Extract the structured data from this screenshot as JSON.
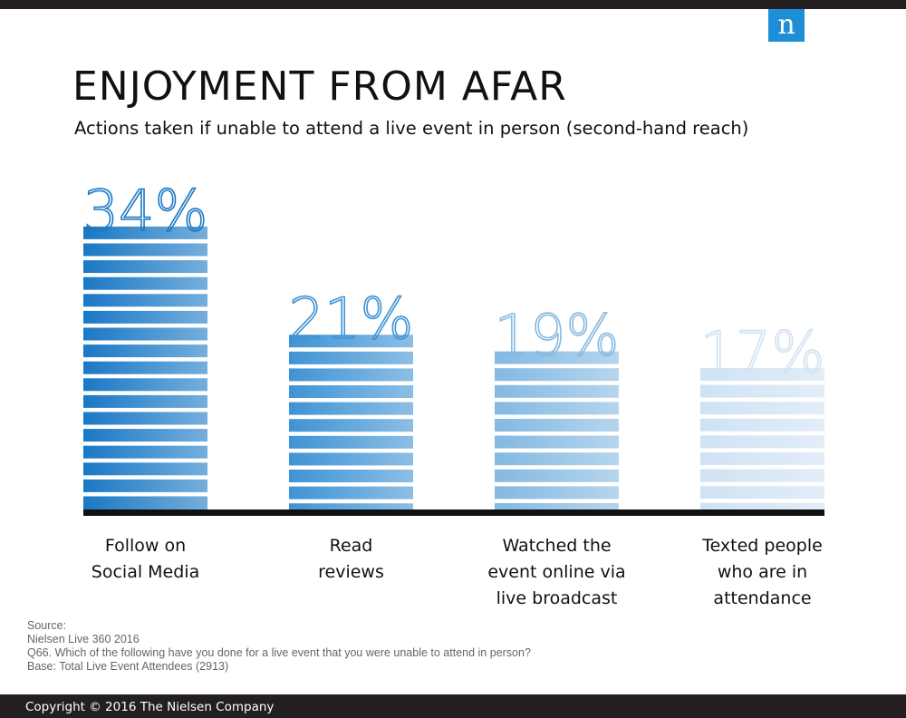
{
  "chart_data": {
    "type": "bar",
    "title": "ENJOYMENT FROM AFAR",
    "subtitle": "Actions taken if unable to attend a live event in person (second-hand reach)",
    "categories": [
      "Follow on\nSocial Media",
      "Read\nreviews",
      "Watched the\nevent online via\nlive broadcast",
      "Texted people\nwho are in\nattendance"
    ],
    "values": [
      34,
      21,
      19,
      17
    ],
    "value_labels": [
      "34%",
      "21%",
      "19%",
      "17%"
    ],
    "colors": [
      "#1a78c4",
      "#3f93d4",
      "#84b9e2",
      "#cfe2f3"
    ]
  },
  "logo": "n",
  "notes": [
    "Source:",
    "Nielsen Live 360 2016",
    "Q66. Which of the following have you done for a live event that you were unable to attend in person?",
    "Base: Total Live Event Attendees (2913)"
  ],
  "copyright": "Copyright © 2016 The Nielsen Company"
}
